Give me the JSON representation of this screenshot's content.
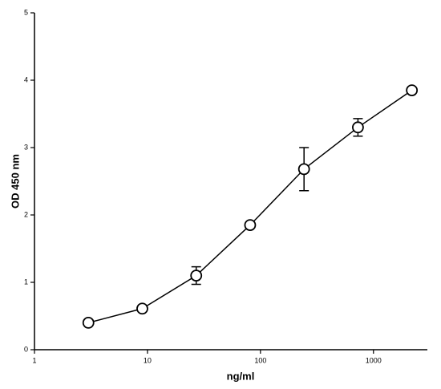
{
  "chart_data": {
    "type": "line",
    "x_label": "ng/ml",
    "y_label": "OD 450 nm",
    "x": [
      3,
      9,
      27,
      81,
      243,
      729,
      2187
    ],
    "series": [
      {
        "color": "#000000",
        "values": [
          0.4,
          0.61,
          1.1,
          1.85,
          2.68,
          3.3,
          3.85
        ],
        "errors": [
          null,
          null,
          0.13,
          null,
          0.32,
          0.13,
          null
        ]
      }
    ],
    "xscale": "log",
    "xlim": [
      1,
      3000
    ],
    "xticks": [
      1,
      10,
      100,
      1000
    ],
    "ylim": [
      0,
      5
    ],
    "yticks": [
      0,
      1,
      2,
      3,
      4,
      5
    ]
  }
}
